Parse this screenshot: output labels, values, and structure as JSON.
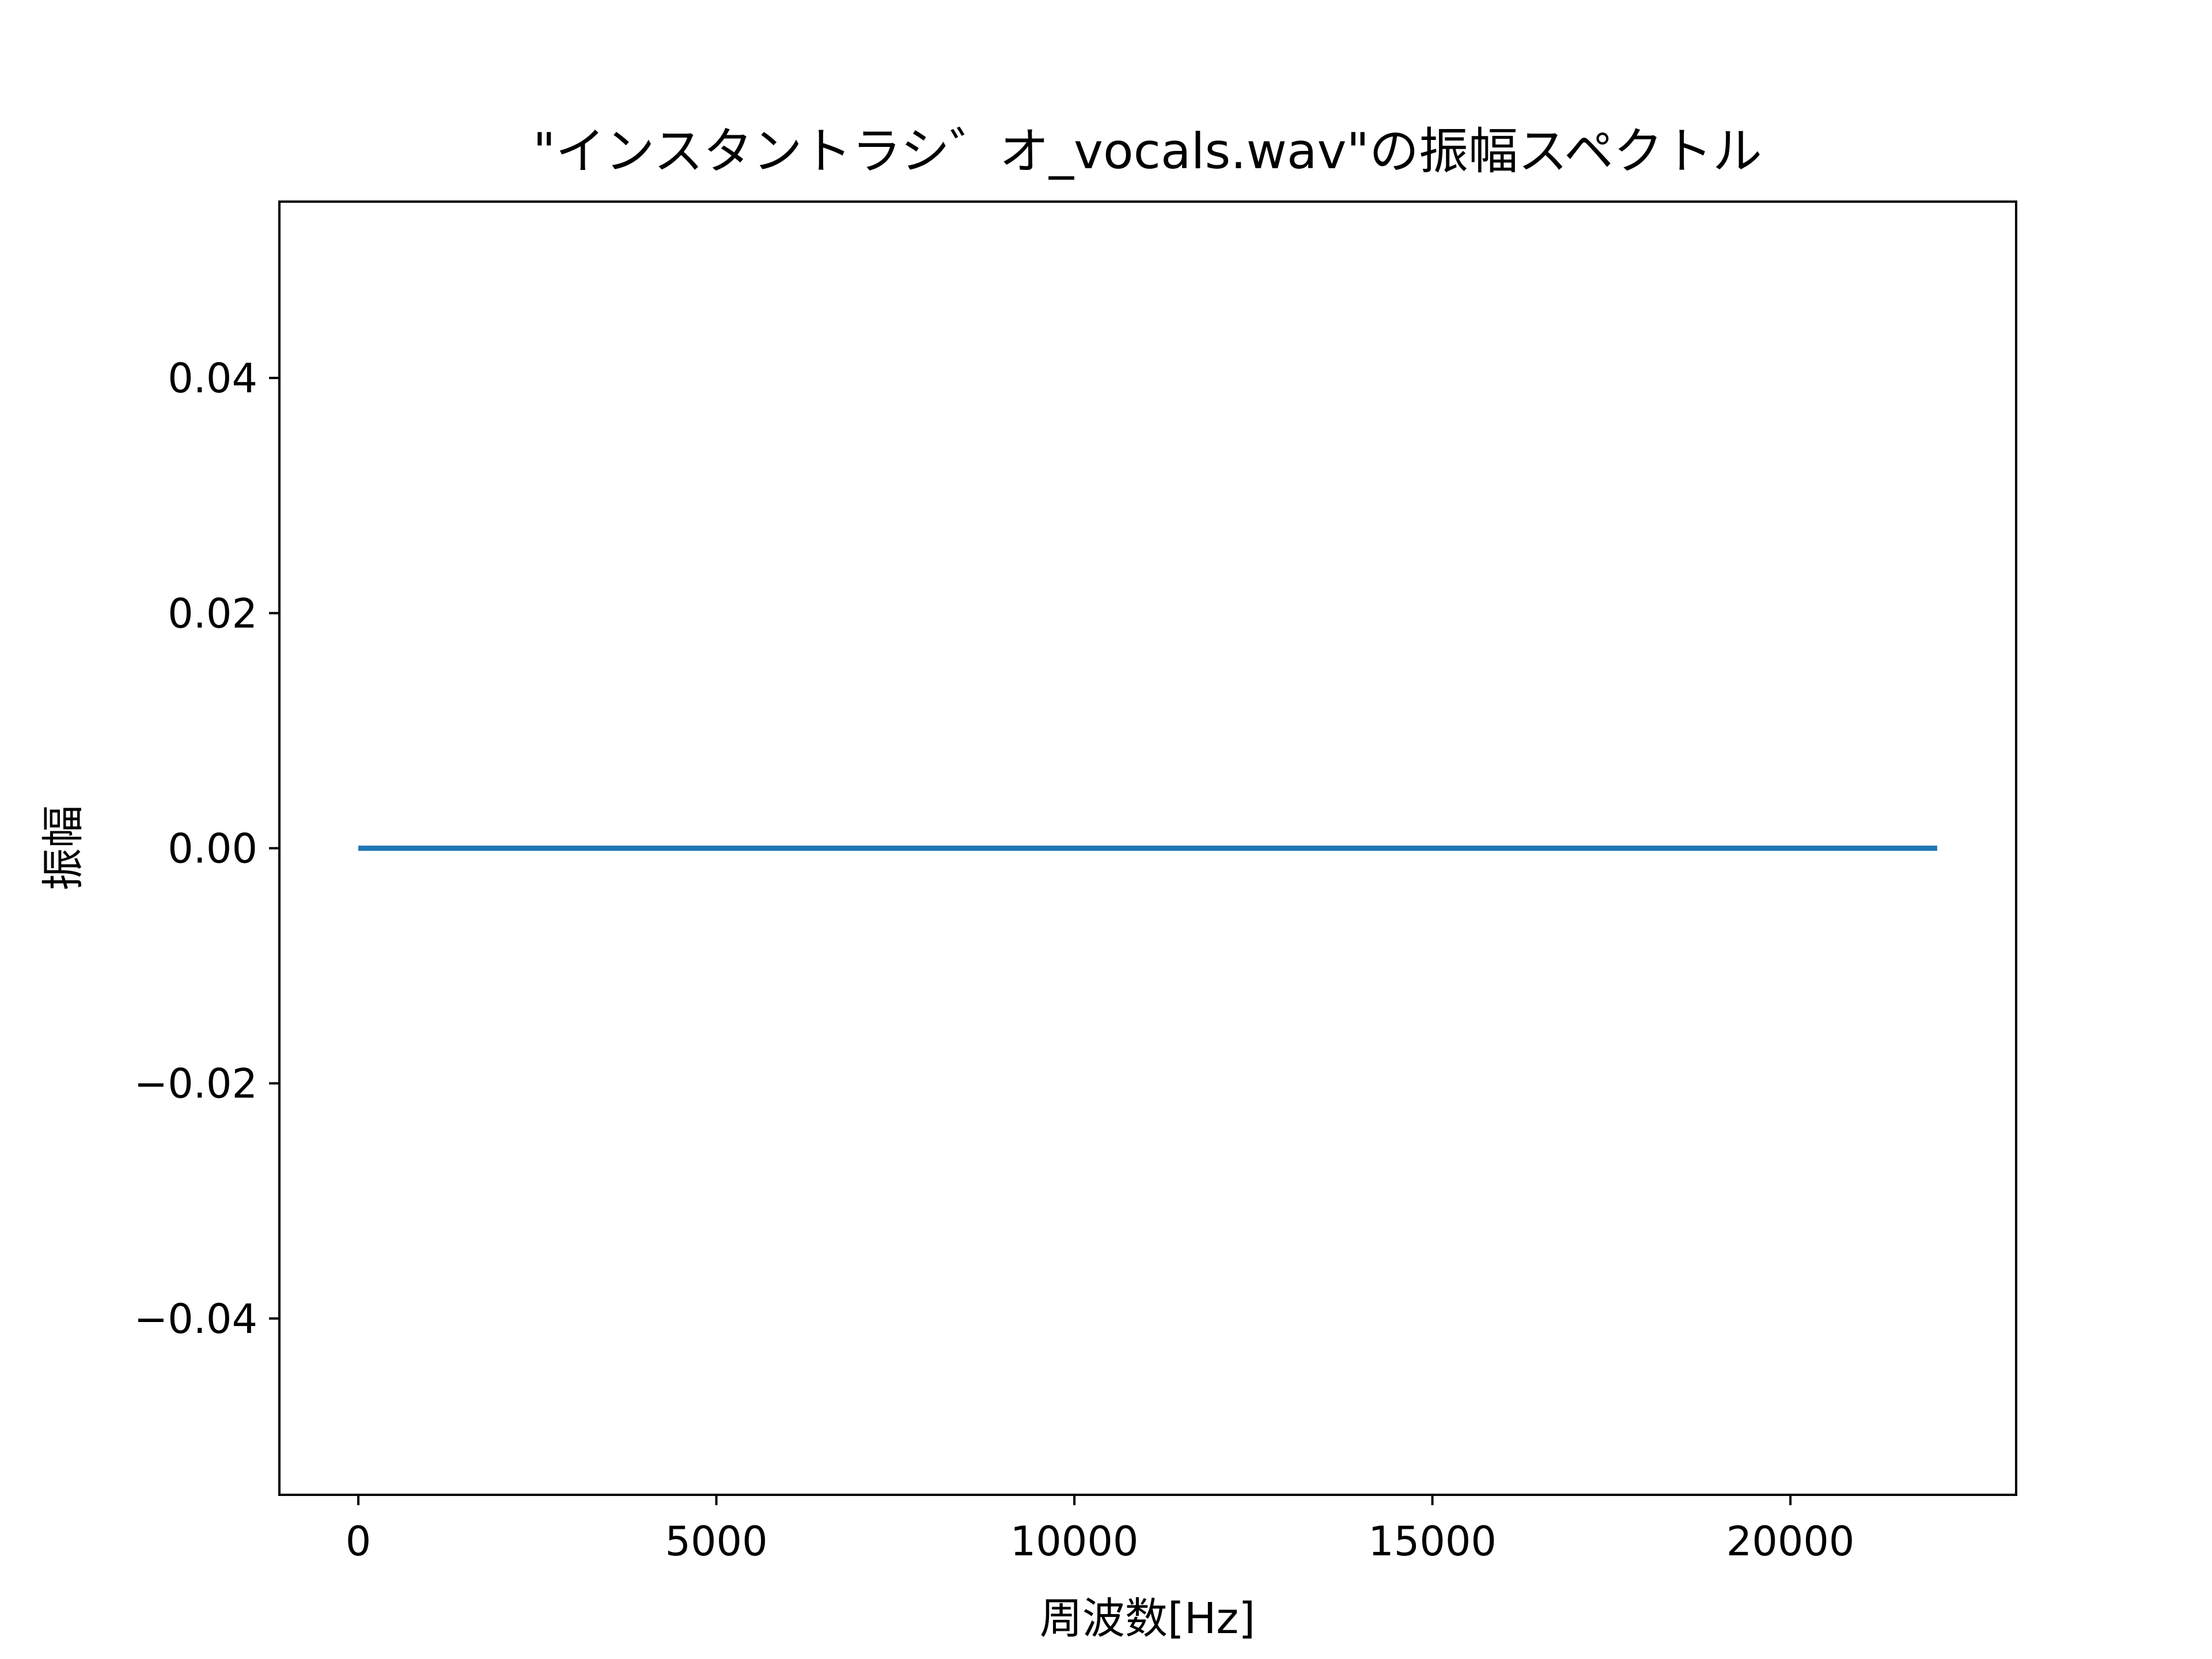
{
  "chart_data": {
    "type": "line",
    "title": "\"インスタントラシ゛オ_vocals.wav\"の振幅スペクトル",
    "xlabel": "周波数[Hz]",
    "ylabel": "振幅",
    "xlim": [
      -1102.5,
      23152.5
    ],
    "ylim": [
      -0.055,
      0.055
    ],
    "xticks": [
      0,
      5000,
      10000,
      15000,
      20000
    ],
    "yticks": [
      -0.04,
      -0.02,
      0.0,
      0.02,
      0.04
    ],
    "xtick_labels": [
      "0",
      "5000",
      "10000",
      "15000",
      "20000"
    ],
    "ytick_labels": [
      "−0.04",
      "−0.02",
      "0.00",
      "0.02",
      "0.04"
    ],
    "grid": false,
    "series": [
      {
        "color": "#1f77b4",
        "x": [
          0,
          22050
        ],
        "y": [
          0.0,
          0.0
        ]
      }
    ]
  }
}
